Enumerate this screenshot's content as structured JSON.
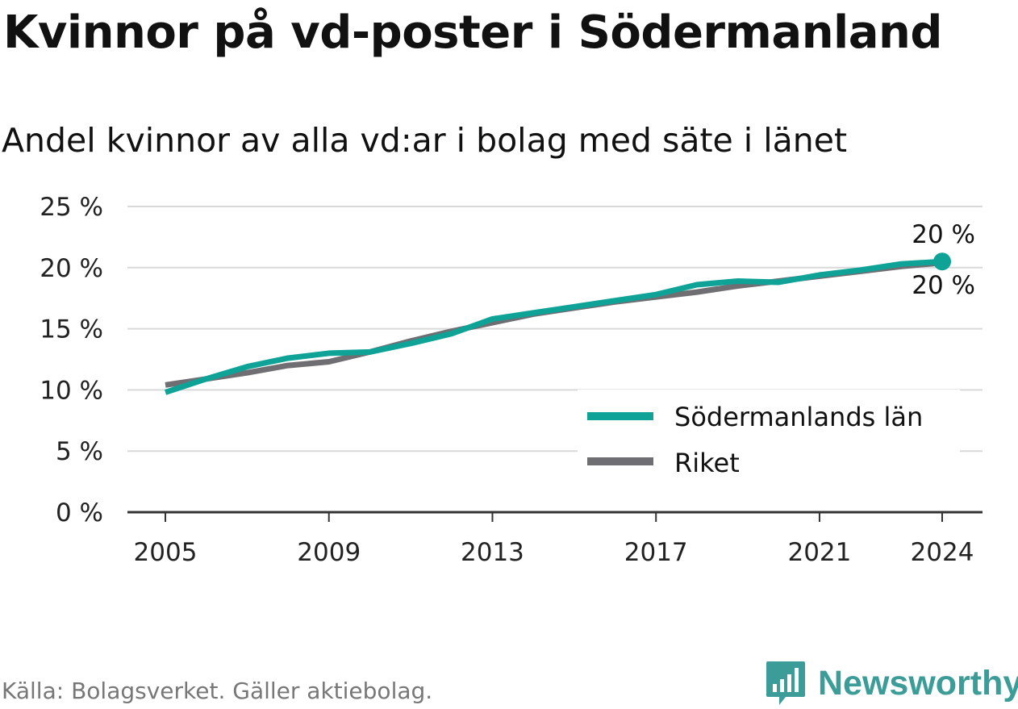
{
  "header": {
    "title": "Kvinnor på vd-poster i Södermanland",
    "subtitle": "Andel kvinnor av alla vd:ar i bolag med säte i länet"
  },
  "footer": {
    "source": "Källa: Bolagsverket. Gäller aktiebolag.",
    "brand": "Newsworthy",
    "brand_icon": "newsworthy-logo-icon",
    "brand_color": "#3c9c98"
  },
  "chart_data": {
    "type": "line",
    "title": "Kvinnor på vd-poster i Södermanland",
    "subtitle": "Andel kvinnor av alla vd:ar i bolag med säte i länet",
    "xlabel": "",
    "ylabel": "",
    "x": [
      2005,
      2006,
      2007,
      2008,
      2009,
      2010,
      2011,
      2012,
      2013,
      2014,
      2015,
      2016,
      2017,
      2018,
      2019,
      2020,
      2021,
      2022,
      2023,
      2024
    ],
    "x_ticks": [
      2005,
      2009,
      2013,
      2017,
      2021,
      2024
    ],
    "x_tick_labels": [
      "2005",
      "2009",
      "2013",
      "2017",
      "2021",
      "2024"
    ],
    "ylim": [
      0,
      25
    ],
    "y_ticks": [
      0,
      5,
      10,
      15,
      20,
      25
    ],
    "y_tick_labels": [
      "0 %",
      "5 %",
      "10 %",
      "15 %",
      "20 %",
      "25 %"
    ],
    "grid": true,
    "legend_position": "bottom-right",
    "series": [
      {
        "name": "Södermanlands län",
        "color": "#0fa398",
        "values": [
          9.8,
          10.9,
          11.9,
          12.6,
          13.0,
          13.1,
          13.8,
          14.6,
          15.8,
          16.3,
          16.8,
          17.3,
          17.8,
          18.6,
          18.9,
          18.8,
          19.4,
          19.8,
          20.3,
          20.5
        ],
        "end_label": "20 %"
      },
      {
        "name": "Riket",
        "color": "#6e6e73",
        "values": [
          10.4,
          10.9,
          11.4,
          12.0,
          12.3,
          13.1,
          14.0,
          14.8,
          15.5,
          16.2,
          16.7,
          17.2,
          17.6,
          18.0,
          18.5,
          18.9,
          19.3,
          19.7,
          20.1,
          20.4
        ],
        "end_label": "20 %"
      }
    ]
  }
}
